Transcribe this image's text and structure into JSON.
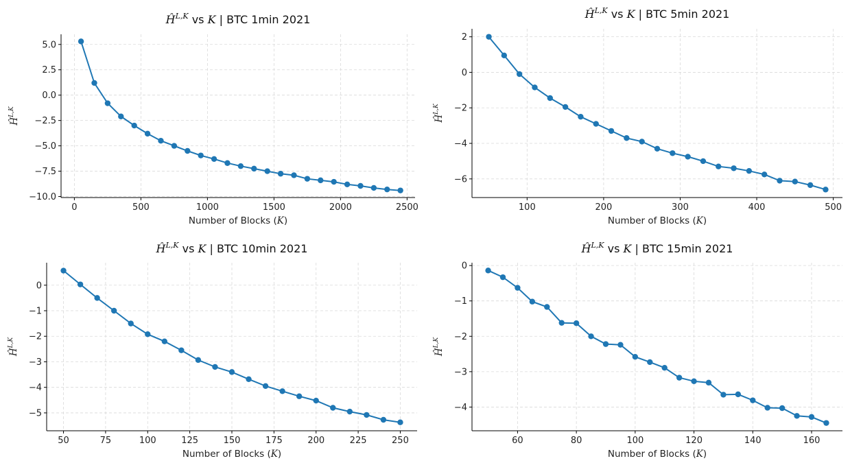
{
  "style": {
    "series_color": "#1f77b4",
    "grid_color": "#d9d9d9"
  },
  "chart_data": [
    {
      "type": "line",
      "title": "vs  |  BTC 1min 2021",
      "title_symbol": "Ĥ",
      "title_superscript": "L,K",
      "title_k": "K",
      "title_suffix": "|  BTC 1min 2021",
      "xlabel": "Number of Blocks (K)",
      "ylabel": "Ĥ L,K",
      "x": [
        50,
        150,
        250,
        350,
        450,
        550,
        650,
        750,
        850,
        950,
        1050,
        1150,
        1250,
        1350,
        1450,
        1550,
        1650,
        1750,
        1850,
        1950,
        2050,
        2150,
        2250,
        2350,
        2450
      ],
      "y": [
        5.3,
        1.2,
        -0.8,
        -2.1,
        -3.0,
        -3.8,
        -4.5,
        -5.0,
        -5.5,
        -5.95,
        -6.3,
        -6.7,
        -7.0,
        -7.25,
        -7.5,
        -7.75,
        -7.9,
        -8.25,
        -8.4,
        -8.55,
        -8.8,
        -8.95,
        -9.15,
        -9.3,
        -9.4
      ],
      "xlim": [
        -100,
        2560
      ],
      "ylim": [
        -10.1,
        6.0
      ],
      "xticks": [
        0,
        500,
        1000,
        1500,
        2000,
        2500
      ],
      "xtick_labels": [
        "0",
        "500",
        "1000",
        "1500",
        "2000",
        "2500"
      ],
      "yticks": [
        5.0,
        2.5,
        0.0,
        -2.5,
        -5.0,
        -7.5,
        -10.0
      ],
      "ytick_labels": [
        "5.0",
        "2.5",
        "0.0",
        "−2.5",
        "−5.0",
        "−7.5",
        "−10.0"
      ],
      "grid": true
    },
    {
      "type": "line",
      "title": "vs  |  BTC 5min 2021",
      "title_symbol": "Ĥ",
      "title_superscript": "L,K",
      "title_k": "K",
      "title_suffix": "|  BTC 5min 2021",
      "xlabel": "Number of Blocks (K)",
      "ylabel": "Ĥ L,K",
      "x": [
        50,
        70,
        90,
        110,
        130,
        150,
        170,
        190,
        210,
        230,
        250,
        270,
        290,
        310,
        330,
        350,
        370,
        390,
        410,
        430,
        450,
        470,
        490
      ],
      "y": [
        2.0,
        0.95,
        -0.1,
        -0.85,
        -1.45,
        -1.95,
        -2.5,
        -2.9,
        -3.3,
        -3.7,
        -3.9,
        -4.3,
        -4.55,
        -4.75,
        -5.0,
        -5.3,
        -5.4,
        -5.55,
        -5.75,
        -6.1,
        -6.15,
        -6.35,
        -6.6
      ],
      "xlim": [
        28,
        512
      ],
      "ylim": [
        -7.05,
        2.45
      ],
      "xticks": [
        100,
        200,
        300,
        400,
        500
      ],
      "xtick_labels": [
        "100",
        "200",
        "300",
        "400",
        "500"
      ],
      "yticks": [
        2,
        0,
        -2,
        -4,
        -6
      ],
      "ytick_labels": [
        "2",
        "0",
        "−2",
        "−4",
        "−6"
      ],
      "grid": true
    },
    {
      "type": "line",
      "title": "vs  |  BTC 10min 2021",
      "title_symbol": "Ĥ",
      "title_superscript": "L,K",
      "title_k": "K",
      "title_suffix": "|  BTC 10min 2021",
      "xlabel": "Number of Blocks (K)",
      "ylabel": "Ĥ L,K",
      "x": [
        50,
        60,
        70,
        80,
        90,
        100,
        110,
        120,
        130,
        140,
        150,
        160,
        170,
        180,
        190,
        200,
        210,
        220,
        230,
        240,
        250
      ],
      "y": [
        0.57,
        0.03,
        -0.5,
        -1.0,
        -1.5,
        -1.92,
        -2.2,
        -2.55,
        -2.93,
        -3.2,
        -3.4,
        -3.68,
        -3.95,
        -4.15,
        -4.35,
        -4.52,
        -4.8,
        -4.95,
        -5.08,
        -5.27,
        -5.37
      ],
      "xlim": [
        40,
        260
      ],
      "ylim": [
        -5.7,
        0.88
      ],
      "xticks": [
        50,
        75,
        100,
        125,
        150,
        175,
        200,
        225,
        250
      ],
      "xtick_labels": [
        "50",
        "75",
        "100",
        "125",
        "150",
        "175",
        "200",
        "225",
        "250"
      ],
      "yticks": [
        0,
        -1,
        -2,
        -3,
        -4,
        -5
      ],
      "ytick_labels": [
        "0",
        "−1",
        "−2",
        "−3",
        "−4",
        "−5"
      ],
      "grid": true
    },
    {
      "type": "line",
      "title": "vs  |  BTC 15min 2021",
      "title_symbol": "Ĥ",
      "title_superscript": "L,K",
      "title_k": "K",
      "title_suffix": "|  BTC 15min 2021",
      "xlabel": "Number of Blocks (K)",
      "ylabel": "Ĥ L,K",
      "x": [
        50,
        55,
        60,
        65,
        70,
        75,
        80,
        85,
        90,
        95,
        100,
        105,
        110,
        115,
        120,
        125,
        130,
        135,
        140,
        145,
        150,
        155,
        160,
        165
      ],
      "y": [
        -0.14,
        -0.33,
        -0.63,
        -1.02,
        -1.17,
        -1.62,
        -1.63,
        -2.0,
        -2.22,
        -2.24,
        -2.58,
        -2.73,
        -2.89,
        -3.17,
        -3.27,
        -3.31,
        -3.65,
        -3.64,
        -3.81,
        -4.02,
        -4.03,
        -4.25,
        -4.28,
        -4.45
      ],
      "xlim": [
        44.5,
        170.5
      ],
      "ylim": [
        -4.67,
        0.08
      ],
      "xticks": [
        60,
        80,
        100,
        120,
        140,
        160
      ],
      "xtick_labels": [
        "60",
        "80",
        "100",
        "120",
        "140",
        "160"
      ],
      "yticks": [
        0,
        -1,
        -2,
        -3,
        -4
      ],
      "ytick_labels": [
        "0",
        "−1",
        "−2",
        "−3",
        "−4"
      ],
      "grid": true
    }
  ]
}
